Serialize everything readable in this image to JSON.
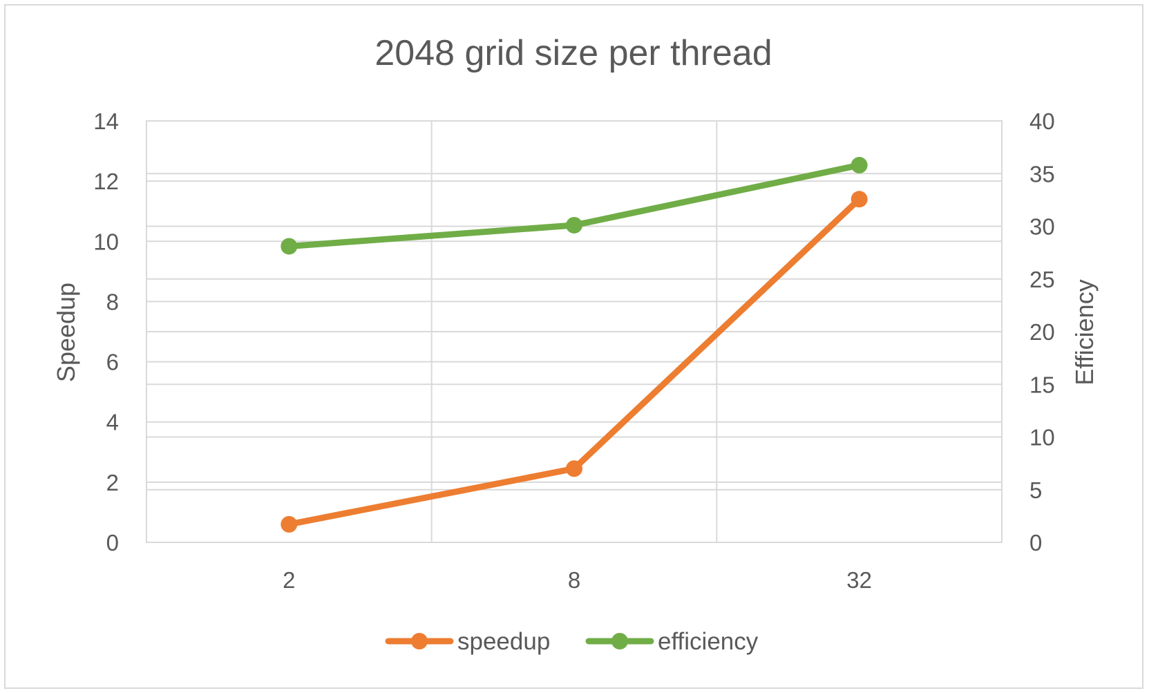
{
  "chart_data": {
    "type": "line",
    "title": "2048 grid size per thread",
    "categories": [
      "2",
      "8",
      "32"
    ],
    "y_left": {
      "label": "Speedup",
      "min": 0,
      "max": 14,
      "step": 2,
      "ticks": [
        "0",
        "2",
        "4",
        "6",
        "8",
        "10",
        "12",
        "14"
      ]
    },
    "y_right": {
      "label": "Efficiency",
      "min": 0,
      "max": 40,
      "step": 5,
      "ticks": [
        "0",
        "5",
        "10",
        "15",
        "20",
        "25",
        "30",
        "35",
        "40"
      ]
    },
    "series": [
      {
        "name": "speedup",
        "axis": "left",
        "color": "#ED7D31",
        "values": [
          0.6,
          2.45,
          11.4
        ]
      },
      {
        "name": "efficiency",
        "axis": "right",
        "color": "#70AD47",
        "values": [
          28.1,
          30.1,
          35.8
        ]
      }
    ],
    "gridlines": true,
    "legend": "bottom"
  }
}
